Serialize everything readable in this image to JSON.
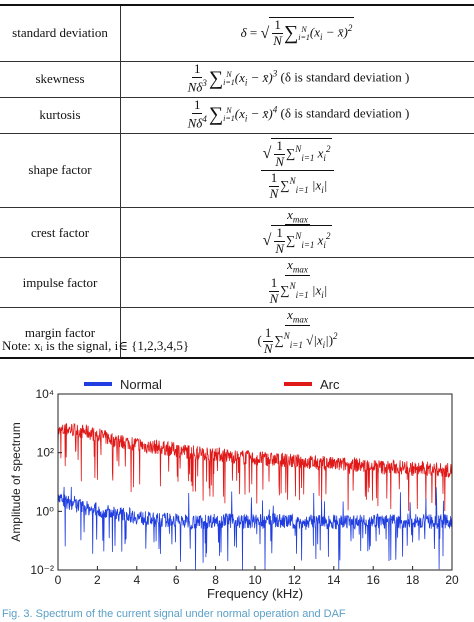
{
  "table": {
    "rows": [
      {
        "name": "standard deviation",
        "note": ""
      },
      {
        "name": "skewness",
        "note": "(δ is standard deviation )"
      },
      {
        "name": "kurtosis",
        "note": "(δ is standard deviation )"
      },
      {
        "name": "shape factor",
        "note": ""
      },
      {
        "name": "crest factor",
        "note": ""
      },
      {
        "name": "impulse factor",
        "note": ""
      },
      {
        "name": "margin factor",
        "note": ""
      }
    ]
  },
  "note": "Note: xᵢ is the signal, i∈ {1,2,3,4,5}",
  "caption": "Fig. 3.   Spectrum of the current signal under normal operation and DAF",
  "chart_data": {
    "type": "line",
    "xlabel": "Frequency (kHz)",
    "ylabel": "Amplitude of spectrum",
    "xlim": [
      0,
      20
    ],
    "ylim_log10": [
      -2,
      4
    ],
    "y_scale": "log",
    "x_ticks": [
      "0",
      "2",
      "4",
      "6",
      "8",
      "10",
      "12",
      "14",
      "16",
      "18",
      "20"
    ],
    "y_ticks": [
      "10⁻²",
      "10⁰",
      "10²",
      "10⁴"
    ],
    "legend_position": "top",
    "grid": false,
    "series": [
      {
        "name": "Normal",
        "color": "#1f3de0",
        "x": [
          0,
          0.5,
          1,
          1.5,
          2,
          2.5,
          3,
          3.5,
          4,
          4.5,
          5,
          5.5,
          6,
          6.5,
          7,
          7.5,
          8,
          8.5,
          9,
          9.5,
          10,
          10.5,
          11,
          11.5,
          12,
          12.5,
          13,
          13.5,
          14,
          14.5,
          15,
          15.5,
          16,
          16.5,
          17,
          17.5,
          18,
          18.5,
          19,
          19.5,
          20
        ],
        "y_log10": [
          0.4,
          0.3,
          0.2,
          0.1,
          0.05,
          0.0,
          -0.1,
          -0.1,
          -0.2,
          -0.25,
          -0.3,
          -0.3,
          -0.3,
          -0.35,
          -0.35,
          -0.35,
          -0.3,
          -0.3,
          -0.35,
          -0.35,
          -0.35,
          -0.35,
          -0.3,
          -0.35,
          -0.35,
          -0.4,
          -0.35,
          -0.35,
          -0.35,
          -0.4,
          -0.35,
          -0.35,
          -0.3,
          -0.35,
          -0.35,
          -0.35,
          -0.3,
          -0.35,
          -0.35,
          -0.35,
          -0.35
        ]
      },
      {
        "name": "Arc",
        "color": "#e01818",
        "x": [
          0,
          0.5,
          1,
          1.5,
          2,
          2.5,
          3,
          3.5,
          4,
          4.5,
          5,
          5.5,
          6,
          6.5,
          7,
          7.5,
          8,
          8.5,
          9,
          9.5,
          10,
          10.5,
          11,
          11.5,
          12,
          12.5,
          13,
          13.5,
          14,
          14.5,
          15,
          15.5,
          16,
          16.5,
          17,
          17.5,
          18,
          18.5,
          19,
          19.5,
          20
        ],
        "y_log10": [
          2.7,
          2.8,
          2.75,
          2.7,
          2.6,
          2.5,
          2.4,
          2.35,
          2.3,
          2.2,
          2.2,
          2.15,
          2.1,
          2.05,
          2.0,
          2.0,
          1.95,
          1.9,
          1.85,
          1.85,
          1.8,
          1.8,
          1.75,
          1.75,
          1.7,
          1.7,
          1.65,
          1.65,
          1.6,
          1.6,
          1.6,
          1.55,
          1.55,
          1.5,
          1.5,
          1.5,
          1.45,
          1.45,
          1.45,
          1.4,
          1.4
        ]
      }
    ]
  }
}
